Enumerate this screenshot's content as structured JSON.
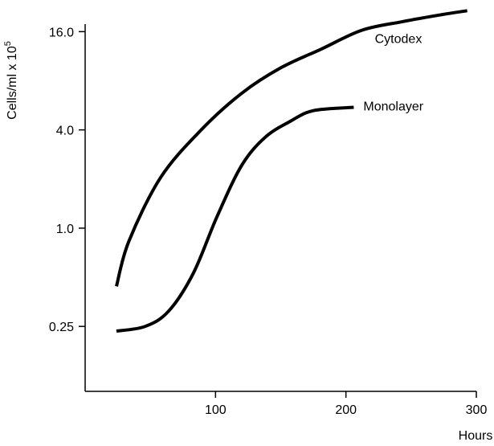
{
  "chart_data": {
    "type": "line",
    "ylabel": "Cells/ml x 10",
    "ylabel_exponent": "5",
    "xlabel": "Hours",
    "xlim": [
      0,
      300
    ],
    "xticks": [
      100,
      200,
      300
    ],
    "ylim": [
      0.1,
      25
    ],
    "yticks": [
      0.25,
      {
        "value": 1,
        "label": "1.0"
      },
      {
        "value": 4,
        "label": "4.0"
      },
      {
        "value": 16,
        "label": "16.0"
      }
    ],
    "log_y": true,
    "grid": false,
    "series": [
      {
        "name": "Cytodex",
        "color": "#000000",
        "x": [
          24,
          33.5,
          58,
          89,
          120,
          150,
          181,
          212,
          243,
          273,
          293
        ],
        "values": [
          0.44,
          0.83,
          2.05,
          4.0,
          6.7,
          9.6,
          12.5,
          16.3,
          18.4,
          20.3,
          21.5
        ]
      },
      {
        "name": "Monolayer",
        "color": "#000000",
        "x": [
          24,
          46,
          64,
          83,
          101,
          120,
          138,
          157,
          175,
          206
        ],
        "values": [
          0.234,
          0.25,
          0.31,
          0.53,
          1.17,
          2.42,
          3.6,
          4.5,
          5.25,
          5.5
        ]
      }
    ]
  }
}
